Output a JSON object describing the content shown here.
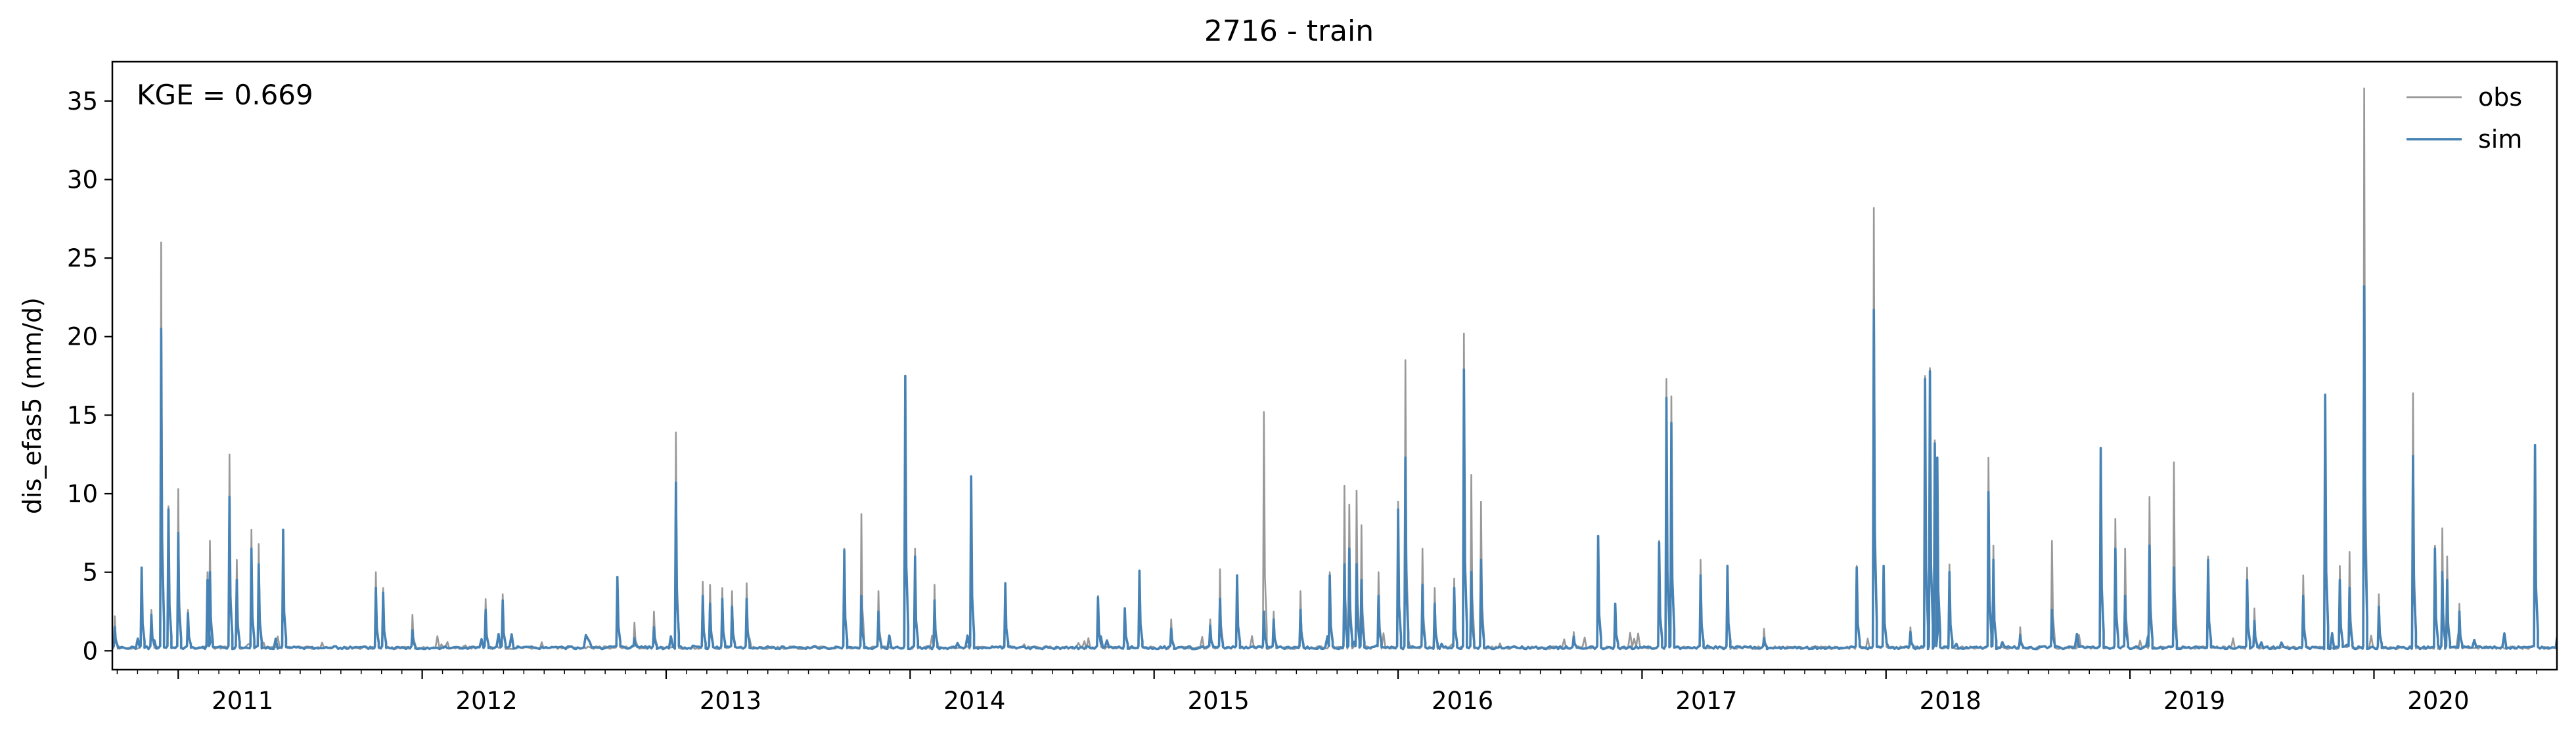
{
  "chart_data": {
    "type": "line",
    "title": "2716 - train",
    "xlabel": "",
    "ylabel": "dis_efas5 (mm/d)",
    "annotation": "KGE = 0.669",
    "x_range": [
      "2010-09-25",
      "2020-10-01"
    ],
    "xlim_decimal_years": [
      2010.73,
      2020.75
    ],
    "ylim": [
      -1.2,
      37.5
    ],
    "x_ticks": [
      "2011",
      "2012",
      "2013",
      "2014",
      "2015",
      "2016",
      "2017",
      "2018",
      "2019",
      "2020"
    ],
    "y_ticks": [
      "0",
      "5",
      "10",
      "15",
      "20",
      "25",
      "30",
      "35"
    ],
    "grid": false,
    "legend_position": "top-right",
    "baseline": 0.2,
    "series": [
      {
        "name": "obs",
        "color": "#999999",
        "peaks": [
          [
            2010.74,
            2.2
          ],
          [
            2010.85,
            5.3
          ],
          [
            2010.89,
            2.6
          ],
          [
            2010.93,
            26.0
          ],
          [
            2010.96,
            9.2
          ],
          [
            2011.0,
            10.3
          ],
          [
            2011.04,
            2.6
          ],
          [
            2011.12,
            5.0
          ],
          [
            2011.13,
            7.0
          ],
          [
            2011.21,
            12.5
          ],
          [
            2011.24,
            5.8
          ],
          [
            2011.3,
            7.7
          ],
          [
            2011.33,
            6.8
          ],
          [
            2011.43,
            7.7
          ],
          [
            2011.81,
            5.0
          ],
          [
            2011.84,
            4.0
          ],
          [
            2011.96,
            2.3
          ],
          [
            2012.26,
            3.3
          ],
          [
            2012.33,
            3.6
          ],
          [
            2012.8,
            4.7
          ],
          [
            2012.87,
            1.8
          ],
          [
            2012.95,
            2.5
          ],
          [
            2013.04,
            13.9
          ],
          [
            2013.15,
            4.4
          ],
          [
            2013.18,
            4.2
          ],
          [
            2013.23,
            4.0
          ],
          [
            2013.27,
            3.8
          ],
          [
            2013.33,
            4.3
          ],
          [
            2013.73,
            6.5
          ],
          [
            2013.8,
            8.7
          ],
          [
            2013.87,
            3.8
          ],
          [
            2013.98,
            17.5
          ],
          [
            2014.02,
            6.5
          ],
          [
            2014.1,
            4.2
          ],
          [
            2014.25,
            11.1
          ],
          [
            2014.39,
            4.3
          ],
          [
            2014.77,
            3.5
          ],
          [
            2014.88,
            2.7
          ],
          [
            2014.94,
            5.1
          ],
          [
            2015.07,
            2.0
          ],
          [
            2015.23,
            2.0
          ],
          [
            2015.27,
            5.2
          ],
          [
            2015.34,
            4.8
          ],
          [
            2015.45,
            15.2
          ],
          [
            2015.49,
            2.5
          ],
          [
            2015.6,
            3.8
          ],
          [
            2015.72,
            5.0
          ],
          [
            2015.78,
            10.5
          ],
          [
            2015.8,
            9.3
          ],
          [
            2015.83,
            10.2
          ],
          [
            2015.85,
            8.0
          ],
          [
            2015.92,
            5.0
          ],
          [
            2016.0,
            9.5
          ],
          [
            2016.03,
            18.5
          ],
          [
            2016.1,
            6.5
          ],
          [
            2016.15,
            4.0
          ],
          [
            2016.23,
            4.6
          ],
          [
            2016.27,
            20.2
          ],
          [
            2016.3,
            11.2
          ],
          [
            2016.34,
            9.5
          ],
          [
            2016.72,
            1.2
          ],
          [
            2016.82,
            7.3
          ],
          [
            2016.89,
            3.0
          ],
          [
            2017.07,
            7.0
          ],
          [
            2017.1,
            17.3
          ],
          [
            2017.12,
            16.2
          ],
          [
            2017.24,
            5.8
          ],
          [
            2017.35,
            5.4
          ],
          [
            2017.5,
            1.4
          ],
          [
            2017.88,
            5.4
          ],
          [
            2017.95,
            28.2
          ],
          [
            2017.99,
            5.4
          ],
          [
            2018.1,
            1.5
          ],
          [
            2018.16,
            17.5
          ],
          [
            2018.18,
            18.0
          ],
          [
            2018.2,
            13.4
          ],
          [
            2018.21,
            12.3
          ],
          [
            2018.26,
            5.5
          ],
          [
            2018.42,
            12.3
          ],
          [
            2018.44,
            6.7
          ],
          [
            2018.55,
            1.5
          ],
          [
            2018.68,
            7.0
          ],
          [
            2018.88,
            12.9
          ],
          [
            2018.94,
            8.4
          ],
          [
            2018.98,
            6.5
          ],
          [
            2019.08,
            9.8
          ],
          [
            2019.18,
            12.0
          ],
          [
            2019.32,
            6.0
          ],
          [
            2019.48,
            5.3
          ],
          [
            2019.51,
            2.7
          ],
          [
            2019.71,
            4.8
          ],
          [
            2019.8,
            16.3
          ],
          [
            2019.86,
            5.4
          ],
          [
            2019.9,
            6.3
          ],
          [
            2019.96,
            35.8
          ],
          [
            2020.02,
            3.6
          ],
          [
            2020.16,
            16.4
          ],
          [
            2020.25,
            6.7
          ],
          [
            2020.28,
            7.8
          ],
          [
            2020.3,
            6.0
          ],
          [
            2020.35,
            3.0
          ],
          [
            2020.66,
            13.1
          ],
          [
            2020.75,
            0.9
          ]
        ]
      },
      {
        "name": "sim",
        "color": "#4682b4",
        "peaks": [
          [
            2010.74,
            1.5
          ],
          [
            2010.85,
            5.3
          ],
          [
            2010.89,
            2.3
          ],
          [
            2010.93,
            20.5
          ],
          [
            2010.96,
            9.0
          ],
          [
            2011.0,
            7.5
          ],
          [
            2011.04,
            2.4
          ],
          [
            2011.12,
            4.5
          ],
          [
            2011.13,
            5.0
          ],
          [
            2011.21,
            9.8
          ],
          [
            2011.24,
            4.5
          ],
          [
            2011.3,
            6.5
          ],
          [
            2011.33,
            5.5
          ],
          [
            2011.43,
            7.7
          ],
          [
            2011.81,
            4.0
          ],
          [
            2011.84,
            3.7
          ],
          [
            2011.96,
            1.3
          ],
          [
            2012.26,
            2.6
          ],
          [
            2012.33,
            3.2
          ],
          [
            2012.8,
            4.7
          ],
          [
            2012.87,
            0.8
          ],
          [
            2012.95,
            1.5
          ],
          [
            2013.04,
            10.7
          ],
          [
            2013.15,
            3.5
          ],
          [
            2013.18,
            3.0
          ],
          [
            2013.23,
            3.3
          ],
          [
            2013.27,
            2.8
          ],
          [
            2013.33,
            3.3
          ],
          [
            2013.73,
            6.4
          ],
          [
            2013.8,
            3.5
          ],
          [
            2013.87,
            2.5
          ],
          [
            2013.98,
            17.5
          ],
          [
            2014.02,
            6.0
          ],
          [
            2014.1,
            3.2
          ],
          [
            2014.25,
            11.1
          ],
          [
            2014.39,
            4.3
          ],
          [
            2014.77,
            3.4
          ],
          [
            2014.88,
            2.7
          ],
          [
            2014.94,
            5.1
          ],
          [
            2015.07,
            1.4
          ],
          [
            2015.23,
            1.6
          ],
          [
            2015.27,
            3.3
          ],
          [
            2015.34,
            4.8
          ],
          [
            2015.45,
            2.5
          ],
          [
            2015.49,
            2.0
          ],
          [
            2015.6,
            2.6
          ],
          [
            2015.72,
            4.8
          ],
          [
            2015.78,
            5.5
          ],
          [
            2015.8,
            6.5
          ],
          [
            2015.83,
            5.5
          ],
          [
            2015.85,
            4.5
          ],
          [
            2015.92,
            3.5
          ],
          [
            2016.0,
            9.0
          ],
          [
            2016.03,
            12.3
          ],
          [
            2016.1,
            4.2
          ],
          [
            2016.15,
            3.0
          ],
          [
            2016.23,
            4.0
          ],
          [
            2016.27,
            17.9
          ],
          [
            2016.3,
            5.0
          ],
          [
            2016.34,
            5.8
          ],
          [
            2016.72,
            0.9
          ],
          [
            2016.82,
            7.3
          ],
          [
            2016.89,
            3.0
          ],
          [
            2017.07,
            6.9
          ],
          [
            2017.1,
            16.1
          ],
          [
            2017.12,
            14.5
          ],
          [
            2017.24,
            4.8
          ],
          [
            2017.35,
            5.4
          ],
          [
            2017.5,
            0.8
          ],
          [
            2017.88,
            5.3
          ],
          [
            2017.95,
            21.7
          ],
          [
            2017.99,
            5.4
          ],
          [
            2018.1,
            1.2
          ],
          [
            2018.16,
            17.3
          ],
          [
            2018.18,
            17.8
          ],
          [
            2018.2,
            13.2
          ],
          [
            2018.21,
            12.3
          ],
          [
            2018.26,
            5.0
          ],
          [
            2018.42,
            10.1
          ],
          [
            2018.44,
            5.8
          ],
          [
            2018.55,
            1.0
          ],
          [
            2018.68,
            2.6
          ],
          [
            2018.88,
            12.9
          ],
          [
            2018.94,
            6.5
          ],
          [
            2018.98,
            3.5
          ],
          [
            2019.08,
            6.7
          ],
          [
            2019.18,
            5.3
          ],
          [
            2019.32,
            5.8
          ],
          [
            2019.48,
            4.5
          ],
          [
            2019.51,
            1.9
          ],
          [
            2019.71,
            3.5
          ],
          [
            2019.8,
            16.3
          ],
          [
            2019.86,
            4.5
          ],
          [
            2019.9,
            4.0
          ],
          [
            2019.96,
            23.2
          ],
          [
            2020.02,
            2.8
          ],
          [
            2020.16,
            12.4
          ],
          [
            2020.25,
            6.5
          ],
          [
            2020.28,
            5.0
          ],
          [
            2020.3,
            4.5
          ],
          [
            2020.35,
            2.5
          ],
          [
            2020.66,
            13.1
          ],
          [
            2020.75,
            0.8
          ]
        ]
      }
    ]
  }
}
